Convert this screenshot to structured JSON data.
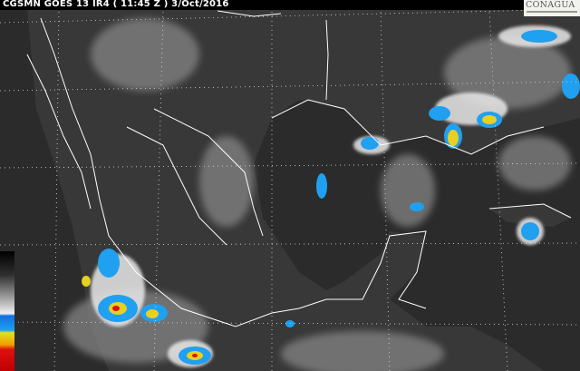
{
  "header": {
    "title": "CGSMN GOES 13 IR4 ( 11:45 Z ) 3/Oct/2016"
  },
  "logo": {
    "text": "CONAGUA"
  },
  "colors": {
    "background": "#2b2b2b",
    "land": "#3a3a3a",
    "cloud_cold": "#20a0f0",
    "cloud_colder": "#e0e020",
    "cloud_coldest": "#e01010",
    "borders": "#ffffff"
  },
  "legend": {
    "type": "temperature-colorbar",
    "colors": [
      "#000000",
      "#9a9a9a",
      "#f0f0f0",
      "#1070e0",
      "#20a0f0",
      "#e0e020",
      "#f0a000",
      "#e01010"
    ]
  }
}
